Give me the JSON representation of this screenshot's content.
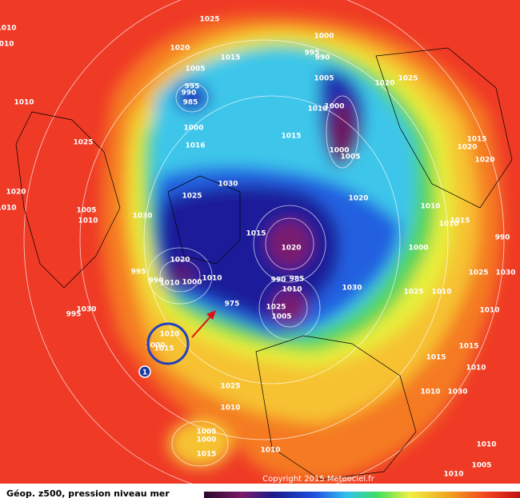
{
  "map": {
    "title": "Géop. z500, pression niveau mer",
    "copyright": "Copyright 2015 Meteociel.fr",
    "marker": "1",
    "isobar_labels": [
      "1025",
      "1010",
      "1010",
      "1000",
      "995",
      "990",
      "1020",
      "1015",
      "1005",
      "1005",
      "1020",
      "1025",
      "995",
      "990",
      "985",
      "1010",
      "1000",
      "1010",
      "1000",
      "1015",
      "1025",
      "1016",
      "1000",
      "1005",
      "1015",
      "1020",
      "1020",
      "1030",
      "1025",
      "1020",
      "1020",
      "1010",
      "1005",
      "1010",
      "1030",
      "1010",
      "1015",
      "1010",
      "1015",
      "990",
      "1020",
      "1000",
      "1020",
      "995",
      "990",
      "1010",
      "1010",
      "1000",
      "990",
      "985",
      "1010",
      "1030",
      "1025",
      "1010",
      "1025",
      "1030",
      "1010",
      "975",
      "1025",
      "1030",
      "995",
      "1005",
      "1010",
      "1000",
      "1015",
      "1015",
      "1015",
      "1010",
      "1010",
      "1030",
      "1025",
      "1010",
      "1005",
      "1000",
      "1015",
      "1010",
      "1010",
      "1005",
      "1010"
    ]
  }
}
